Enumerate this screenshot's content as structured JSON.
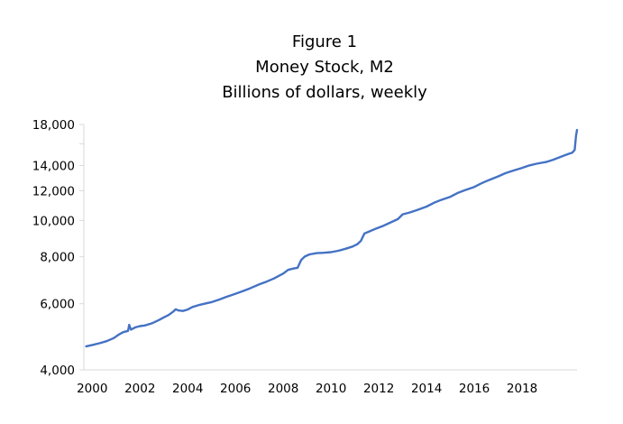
{
  "chart_data": {
    "type": "line",
    "title_lines": [
      "Figure 1",
      "Money Stock, M2",
      "Billions of dollars, weekly"
    ],
    "y_scale": "log",
    "ylim": [
      4000,
      18000
    ],
    "y_ticks": [
      {
        "value": 4000,
        "label": "4,000"
      },
      {
        "value": 6000,
        "label": "6,000"
      },
      {
        "value": 8000,
        "label": "8,000"
      },
      {
        "value": 10000,
        "label": "10,000"
      },
      {
        "value": 12000,
        "label": "12,000"
      },
      {
        "value": 14000,
        "label": "14,000"
      },
      {
        "value": 18000,
        "label": "18,000"
      }
    ],
    "xlim": [
      1999.65,
      2020.3
    ],
    "x_ticks": [
      {
        "value": 2000,
        "label": "2000"
      },
      {
        "value": 2002,
        "label": "2002"
      },
      {
        "value": 2004,
        "label": "2004"
      },
      {
        "value": 2006,
        "label": "2006"
      },
      {
        "value": 2008,
        "label": "2008"
      },
      {
        "value": 2010,
        "label": "2010"
      },
      {
        "value": 2012,
        "label": "2012"
      },
      {
        "value": 2014,
        "label": "2014"
      },
      {
        "value": 2016,
        "label": "2016"
      },
      {
        "value": 2018,
        "label": "2018"
      }
    ],
    "grid": false,
    "series": [
      {
        "color": "#4472C4",
        "points": [
          [
            1999.75,
            4620
          ],
          [
            2000.0,
            4660
          ],
          [
            2000.3,
            4710
          ],
          [
            2000.6,
            4770
          ],
          [
            2000.9,
            4860
          ],
          [
            2001.1,
            4960
          ],
          [
            2001.3,
            5040
          ],
          [
            2001.5,
            5080
          ],
          [
            2001.55,
            5270
          ],
          [
            2001.62,
            5120
          ],
          [
            2001.8,
            5190
          ],
          [
            2002.0,
            5230
          ],
          [
            2002.2,
            5250
          ],
          [
            2002.5,
            5320
          ],
          [
            2002.8,
            5430
          ],
          [
            2003.0,
            5520
          ],
          [
            2003.2,
            5600
          ],
          [
            2003.4,
            5720
          ],
          [
            2003.5,
            5800
          ],
          [
            2003.6,
            5760
          ],
          [
            2003.8,
            5740
          ],
          [
            2004.0,
            5790
          ],
          [
            2004.2,
            5880
          ],
          [
            2004.5,
            5960
          ],
          [
            2004.8,
            6020
          ],
          [
            2005.0,
            6060
          ],
          [
            2005.3,
            6150
          ],
          [
            2005.6,
            6250
          ],
          [
            2006.0,
            6380
          ],
          [
            2006.3,
            6480
          ],
          [
            2006.6,
            6590
          ],
          [
            2007.0,
            6760
          ],
          [
            2007.3,
            6870
          ],
          [
            2007.6,
            7000
          ],
          [
            2008.0,
            7220
          ],
          [
            2008.2,
            7380
          ],
          [
            2008.4,
            7440
          ],
          [
            2008.6,
            7480
          ],
          [
            2008.75,
            7850
          ],
          [
            2008.9,
            8010
          ],
          [
            2009.1,
            8120
          ],
          [
            2009.4,
            8180
          ],
          [
            2009.7,
            8200
          ],
          [
            2010.0,
            8230
          ],
          [
            2010.3,
            8300
          ],
          [
            2010.6,
            8400
          ],
          [
            2010.9,
            8520
          ],
          [
            2011.1,
            8640
          ],
          [
            2011.25,
            8820
          ],
          [
            2011.4,
            9230
          ],
          [
            2011.6,
            9340
          ],
          [
            2011.9,
            9520
          ],
          [
            2012.2,
            9680
          ],
          [
            2012.5,
            9880
          ],
          [
            2012.8,
            10080
          ],
          [
            2013.0,
            10380
          ],
          [
            2013.3,
            10500
          ],
          [
            2013.6,
            10650
          ],
          [
            2014.0,
            10880
          ],
          [
            2014.3,
            11130
          ],
          [
            2014.6,
            11330
          ],
          [
            2015.0,
            11560
          ],
          [
            2015.3,
            11830
          ],
          [
            2015.6,
            12030
          ],
          [
            2016.0,
            12280
          ],
          [
            2016.3,
            12550
          ],
          [
            2016.6,
            12800
          ],
          [
            2017.0,
            13100
          ],
          [
            2017.3,
            13350
          ],
          [
            2017.6,
            13550
          ],
          [
            2018.0,
            13800
          ],
          [
            2018.3,
            14000
          ],
          [
            2018.6,
            14150
          ],
          [
            2019.0,
            14300
          ],
          [
            2019.3,
            14500
          ],
          [
            2019.6,
            14750
          ],
          [
            2019.9,
            15000
          ],
          [
            2020.1,
            15150
          ],
          [
            2020.2,
            15400
          ],
          [
            2020.26,
            16800
          ],
          [
            2020.3,
            17400
          ]
        ]
      }
    ]
  },
  "style": {
    "line_color": "#4472C4",
    "axis_color": "#d9d9d9",
    "text_color": "#000000"
  }
}
